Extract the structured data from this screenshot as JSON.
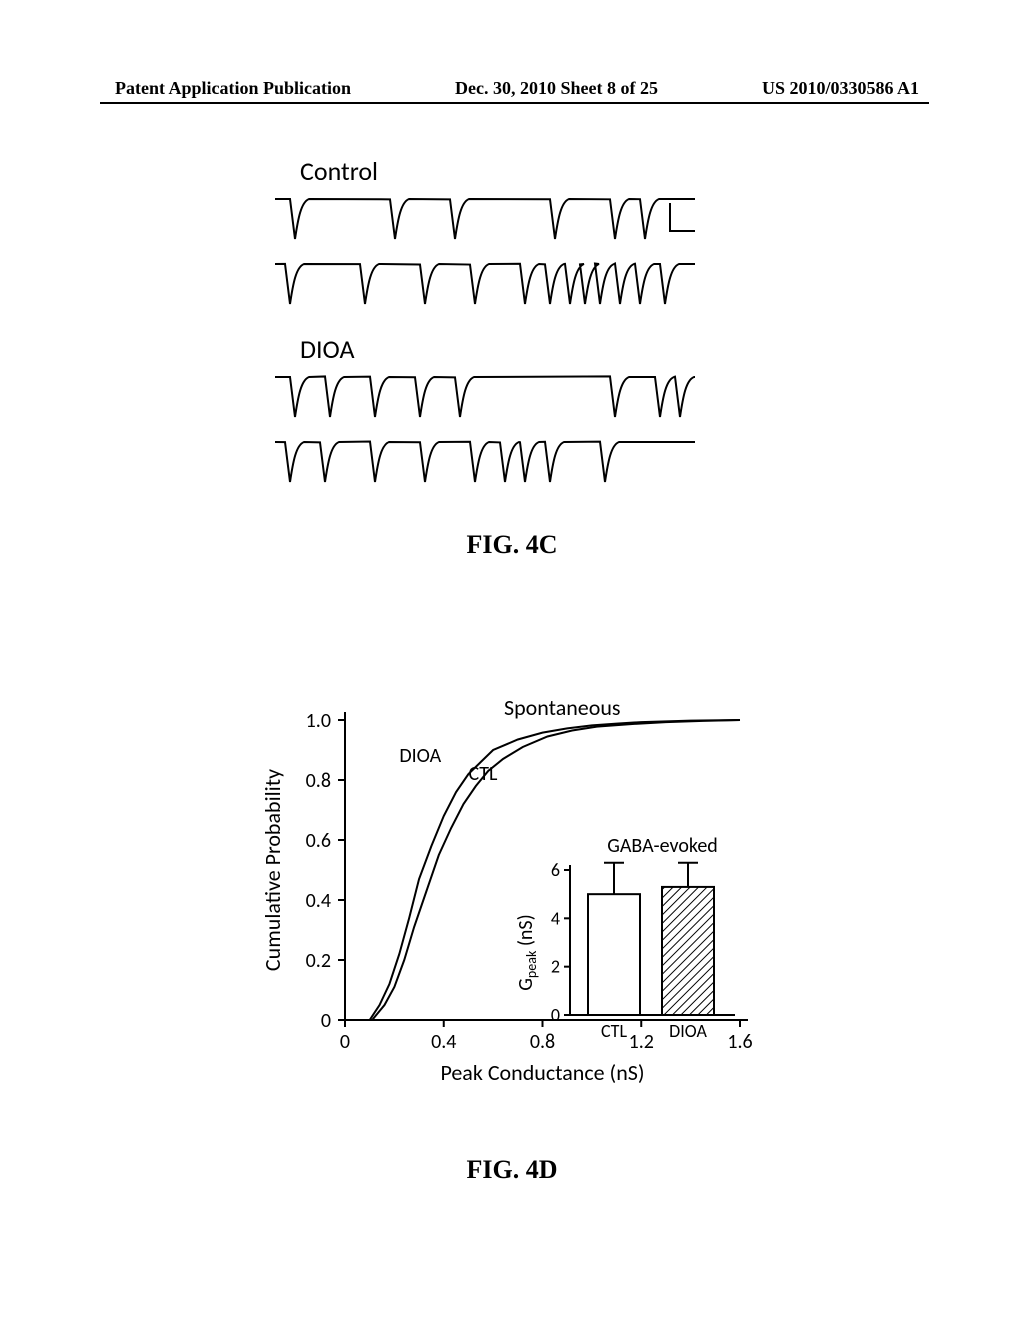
{
  "header": {
    "left": "Patent Application Publication",
    "center": "Dec. 30, 2010  Sheet 8 of 25",
    "right": "US 2010/0330586 A1"
  },
  "fig4c": {
    "label_control": "Control",
    "label_dioa": "DIOA",
    "caption": "FIG. 4C",
    "trace_color": "#000000",
    "background_color": "#ffffff",
    "control_trace1_spikes": [
      20,
      120,
      180,
      280,
      340,
      370
    ],
    "control_trace2_spikes": [
      15,
      90,
      150,
      200,
      250,
      275,
      295,
      310,
      325,
      345,
      365,
      390
    ],
    "dioa_trace1_spikes": [
      20,
      55,
      100,
      145,
      185,
      340,
      385,
      405
    ],
    "dioa_trace2_spikes": [
      15,
      50,
      100,
      150,
      200,
      230,
      250,
      275,
      330
    ],
    "spike_depth": 40
  },
  "fig4d": {
    "caption": "FIG. 4D",
    "main_chart": {
      "type": "line",
      "title": "Spontaneous",
      "title_fontsize": 22,
      "xlabel": "Peak  Conductance    (nS)",
      "ylabel": "Cumulative   Probability",
      "label_fontsize": 22,
      "tick_fontsize": 20,
      "axis_color": "#000000",
      "text_color": "#000000",
      "background_color": "#ffffff",
      "line_color": "#000000",
      "xlim": [
        0,
        1.6
      ],
      "ylim": [
        0,
        1.0
      ],
      "xticks": [
        0,
        0.4,
        0.8,
        1.2,
        1.6
      ],
      "yticks": [
        0,
        0.2,
        0.4,
        0.6,
        0.8,
        1.0
      ],
      "series": [
        {
          "name": "DIOA",
          "label_pos": {
            "x": 0.22,
            "y": 0.86
          },
          "points": [
            [
              0.1,
              0.0
            ],
            [
              0.14,
              0.05
            ],
            [
              0.18,
              0.12
            ],
            [
              0.22,
              0.22
            ],
            [
              0.26,
              0.34
            ],
            [
              0.3,
              0.47
            ],
            [
              0.35,
              0.58
            ],
            [
              0.4,
              0.68
            ],
            [
              0.45,
              0.76
            ],
            [
              0.5,
              0.82
            ],
            [
              0.55,
              0.86
            ],
            [
              0.6,
              0.9
            ],
            [
              0.7,
              0.935
            ],
            [
              0.8,
              0.958
            ],
            [
              0.9,
              0.972
            ],
            [
              1.0,
              0.982
            ],
            [
              1.1,
              0.988
            ],
            [
              1.2,
              0.993
            ],
            [
              1.4,
              0.998
            ],
            [
              1.6,
              1.0
            ]
          ]
        },
        {
          "name": "CTL",
          "label_pos": {
            "x": 0.5,
            "y": 0.8
          },
          "points": [
            [
              0.11,
              0.0
            ],
            [
              0.16,
              0.05
            ],
            [
              0.2,
              0.11
            ],
            [
              0.24,
              0.2
            ],
            [
              0.28,
              0.31
            ],
            [
              0.33,
              0.43
            ],
            [
              0.38,
              0.55
            ],
            [
              0.43,
              0.64
            ],
            [
              0.48,
              0.72
            ],
            [
              0.53,
              0.78
            ],
            [
              0.58,
              0.83
            ],
            [
              0.64,
              0.87
            ],
            [
              0.72,
              0.91
            ],
            [
              0.82,
              0.945
            ],
            [
              0.92,
              0.965
            ],
            [
              1.02,
              0.978
            ],
            [
              1.15,
              0.986
            ],
            [
              1.3,
              0.993
            ],
            [
              1.45,
              0.997
            ],
            [
              1.6,
              1.0
            ]
          ]
        }
      ]
    },
    "inset": {
      "type": "bar",
      "title": "GABA-evoked",
      "title_fontsize": 20,
      "ylabel": "Gpeak  (nS)",
      "label_fontsize": 20,
      "categories": [
        "CTL",
        "DIOA"
      ],
      "values": [
        5.0,
        5.3
      ],
      "errors": [
        1.3,
        1.0
      ],
      "ylim": [
        0,
        6
      ],
      "yticks": [
        0,
        2,
        4,
        6
      ],
      "bar_colors": [
        "#ffffff",
        "hatch"
      ],
      "border_color": "#000000",
      "hatch_color": "#000000",
      "bar_border_width": 2,
      "axis_color": "#000000"
    }
  }
}
